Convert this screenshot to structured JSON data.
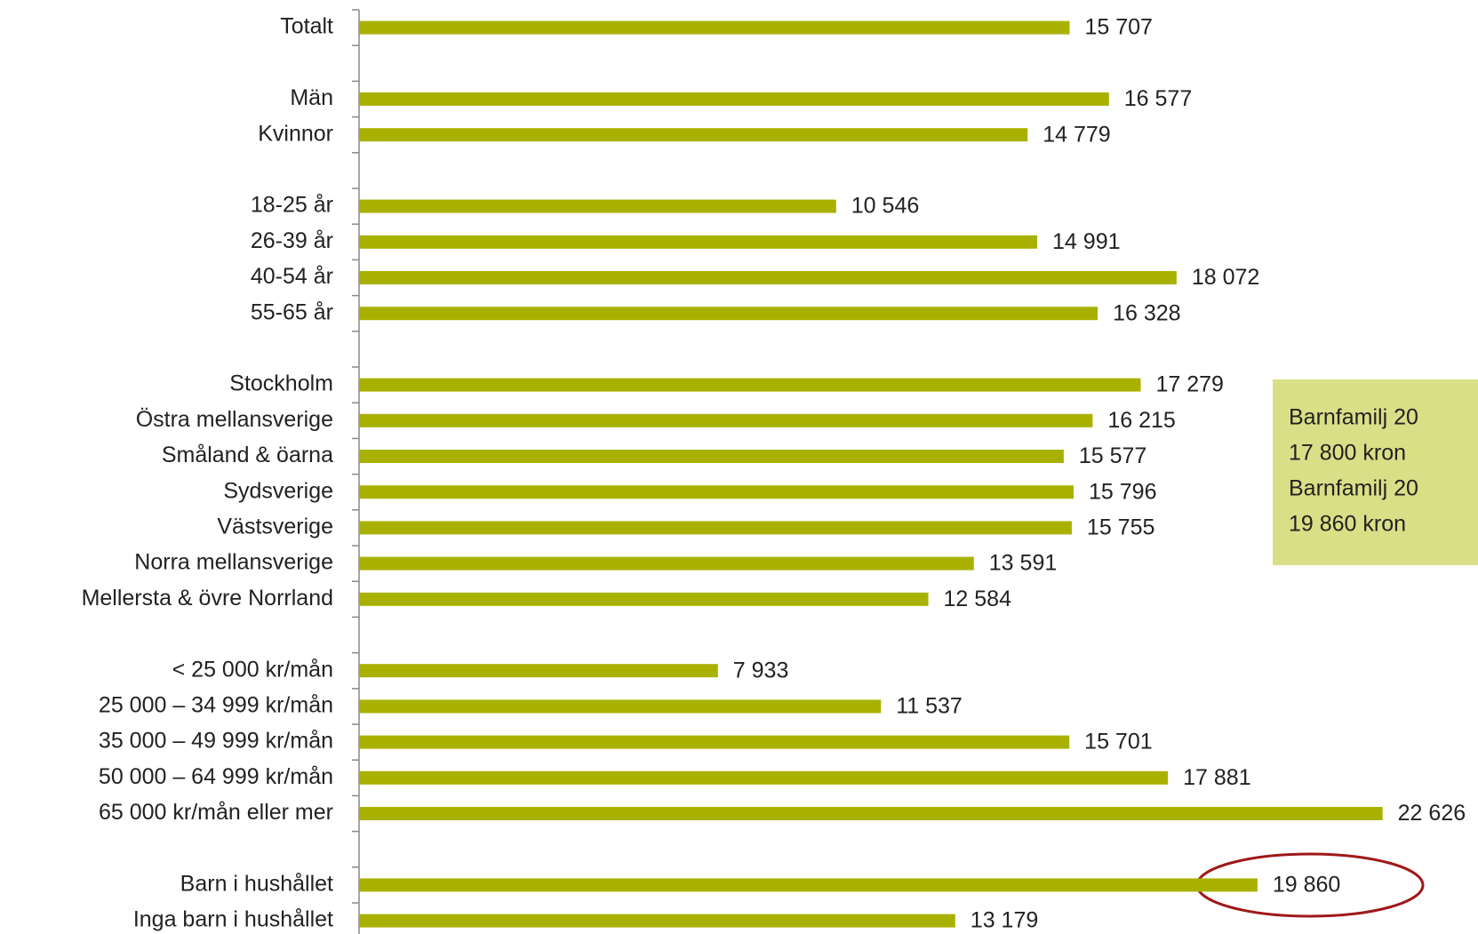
{
  "chart_data": {
    "type": "bar",
    "orientation": "horizontal",
    "categories": [
      "Totalt",
      null,
      "Män",
      "Kvinnor",
      null,
      "18-25 år",
      "26-39 år",
      "40-54 år",
      "55-65 år",
      null,
      "Stockholm",
      "Östra mellansverige",
      "Småland & öarna",
      "Sydsverige",
      "Västsverige",
      "Norra mellansverige",
      "Mellersta & övre Norrland",
      null,
      "< 25 000 kr/mån",
      "25 000 – 34 999 kr/mån",
      "35 000 – 49 999 kr/mån",
      "50 000 – 64 999 kr/mån",
      "65 000 kr/mån eller mer",
      null,
      "Barn i hushållet",
      "Inga barn i hushållet"
    ],
    "values": [
      15707,
      null,
      16577,
      14779,
      null,
      10546,
      14991,
      18072,
      16328,
      null,
      17279,
      16215,
      15577,
      15796,
      15755,
      13591,
      12584,
      null,
      7933,
      11537,
      15701,
      17881,
      22626,
      null,
      19860,
      13179
    ],
    "value_labels": [
      "15 707",
      null,
      "16 577",
      "14 779",
      null,
      "10 546",
      "14 991",
      "18 072",
      "16 328",
      null,
      "17 279",
      "16 215",
      "15 577",
      "15 796",
      "15 755",
      "13 591",
      "12 584",
      null,
      "7 933",
      "11 537",
      "15 701",
      "17 881",
      "22 626",
      null,
      "19 860",
      "13 179"
    ],
    "color": "#a9b100",
    "annotation": [
      "Barnfamilj 20",
      "17 800 kron",
      "Barnfamilj 20",
      "19 860 kron"
    ]
  }
}
